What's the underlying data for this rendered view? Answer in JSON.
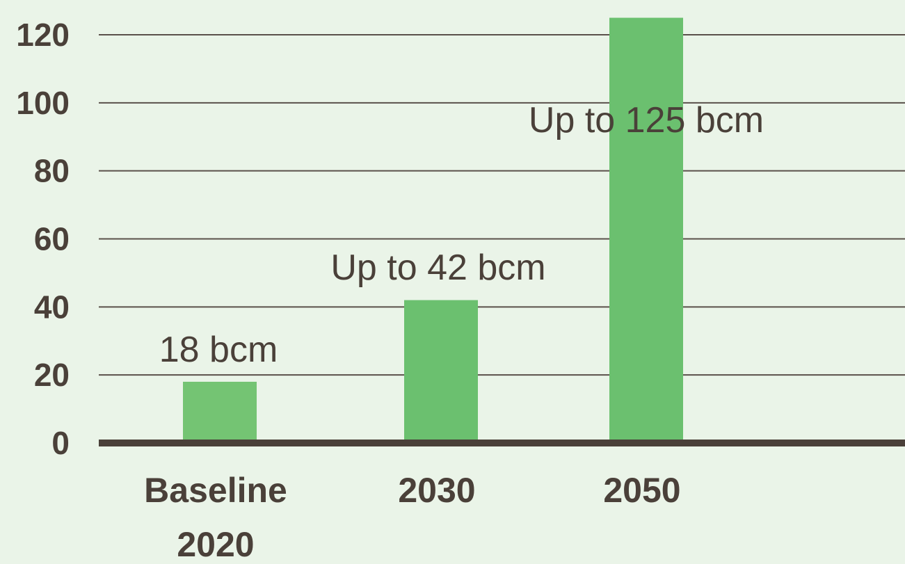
{
  "chart_data": {
    "type": "bar",
    "categories": [
      "Baseline 2020",
      "2030",
      "2050"
    ],
    "category_lines": [
      [
        "Baseline",
        "2020"
      ],
      [
        "2030"
      ],
      [
        "2050"
      ]
    ],
    "values": [
      18,
      42,
      125
    ],
    "data_labels": [
      "18 bcm",
      "Up to 42 bcm",
      "Up to 125 bcm"
    ],
    "yticks": [
      0,
      20,
      40,
      60,
      80,
      100,
      120
    ],
    "ylim": [
      0,
      125
    ],
    "grid": true,
    "title": "",
    "xlabel": "",
    "ylabel": "",
    "colors": {
      "background": "#eaf4e8",
      "bar": "#6bc06f",
      "bar_baseline": "#74c473",
      "gridline": "#5a504a",
      "axis": "#4a4039",
      "text": "#4a4039"
    }
  }
}
